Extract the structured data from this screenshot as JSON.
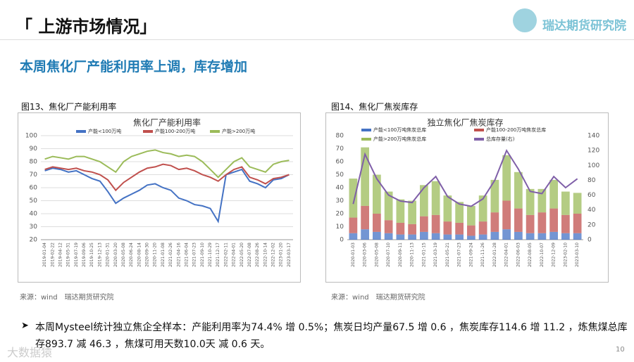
{
  "header": {
    "title": "「 上游市场情况」",
    "logo": "瑞达期货研究院",
    "subtitle": "本周焦化厂产能利用率上调，库存增加"
  },
  "figures": [
    {
      "label": "图13、焦化厂产能利用率",
      "source": "来源：wind　瑞达期货研究院"
    },
    {
      "label": "图14、焦化厂焦炭库存",
      "source": "来源：wind　瑞达期货研究院"
    }
  ],
  "bullet": "本周Mysteel统计独立焦企全样本：产能利用率为74.4% 增 0.5%；焦炭日均产量67.5 增 0.6 ，焦炭库存114.6 增 11.2 ，炼焦煤总库存893.7 减 46.3 ，焦煤可用天数10.0天 减 0.6 天。",
  "watermark": "大数据猿",
  "page_number": "10",
  "chart_data": [
    {
      "type": "line",
      "title": "焦化厂产能利用率",
      "categories": [
        "2019-01-04",
        "2019-02-22",
        "2019-04-12",
        "2019-05-31",
        "2019-07-19",
        "2019-09-06",
        "2019-10-25",
        "2019-12-13",
        "2020-01-31",
        "2020-03-20",
        "2020-05-08",
        "2020-06-24",
        "2020-08-14",
        "2020-09-30",
        "2020-11-20",
        "2021-01-08",
        "2021-02-26",
        "2021-04-16",
        "2021-06-04",
        "2021-07-23",
        "2021-09-10",
        "2021-10-29",
        "2021-12-17",
        "2022-02-11",
        "2022-04-01",
        "2022-05-20",
        "2022-07-08",
        "2022-08-26",
        "2022-10-14",
        "2022-12-02",
        "2023-01-20",
        "2023-03-17"
      ],
      "series": [
        {
          "name": "产能<100万吨",
          "color": "#4472c4",
          "values": [
            73,
            75,
            74,
            72,
            73,
            70,
            67,
            65,
            57,
            48,
            52,
            55,
            58,
            62,
            63,
            60,
            58,
            52,
            50,
            47,
            46,
            44,
            34,
            70,
            72,
            74,
            65,
            63,
            60,
            66,
            67,
            70
          ]
        },
        {
          "name": "产能100-200万吨",
          "color": "#c0504d",
          "values": [
            74,
            76,
            75,
            74,
            75,
            73,
            72,
            70,
            66,
            58,
            64,
            68,
            72,
            75,
            76,
            78,
            77,
            74,
            75,
            73,
            70,
            68,
            65,
            70,
            74,
            76,
            68,
            66,
            63,
            67,
            68,
            70
          ]
        },
        {
          "name": "产能>200万吨",
          "color": "#9bbb59",
          "values": [
            82,
            84,
            83,
            82,
            84,
            84,
            82,
            80,
            76,
            72,
            80,
            84,
            86,
            88,
            89,
            87,
            86,
            84,
            85,
            84,
            80,
            74,
            68,
            74,
            80,
            83,
            76,
            74,
            72,
            78,
            80,
            81
          ]
        }
      ],
      "ylim": [
        20,
        100
      ],
      "yticks": [
        20,
        30,
        40,
        50,
        60,
        70,
        80,
        90,
        100
      ],
      "grid": true
    },
    {
      "type": "bar",
      "stacked": true,
      "title": "独立焦化厂焦炭库存",
      "categories": [
        "2020-01-03",
        "2020-03-06",
        "2020-05-08",
        "2020-07-10",
        "2020-09-11",
        "2020-11-13",
        "2021-01-15",
        "2021-03-19",
        "2021-05-21",
        "2021-07-23",
        "2021-09-24",
        "2021-11-26",
        "2022-01-28",
        "2022-04-01",
        "2022-06-03",
        "2022-08-05",
        "2022-10-07",
        "2022-12-09",
        "2023-02-10",
        "2023-03-10"
      ],
      "series": [
        {
          "name": "产能<100万吨焦炭总库",
          "color": "#4472c4",
          "values": [
            5,
            8,
            6,
            5,
            4,
            4,
            6,
            5,
            4,
            4,
            3,
            4,
            6,
            8,
            6,
            5,
            5,
            6,
            5,
            5
          ]
        },
        {
          "name": "产能100-200万吨焦炭总库",
          "color": "#c0504d",
          "values": [
            12,
            18,
            14,
            10,
            9,
            8,
            12,
            14,
            10,
            9,
            8,
            10,
            15,
            22,
            18,
            14,
            16,
            18,
            14,
            15
          ]
        },
        {
          "name": "产能>200万吨焦炭总库",
          "color": "#9bbb59",
          "values": [
            30,
            45,
            30,
            22,
            18,
            18,
            24,
            26,
            20,
            16,
            15,
            20,
            25,
            35,
            28,
            20,
            18,
            22,
            18,
            16
          ]
        },
        {
          "name": "总库存量(右)",
          "color": "#7f5fa8",
          "type": "line",
          "axis": "y2",
          "values": [
            48,
            115,
            82,
            60,
            52,
            50,
            70,
            85,
            58,
            48,
            45,
            55,
            80,
            120,
            95,
            65,
            62,
            85,
            70,
            82
          ]
        }
      ],
      "ylim": [
        0,
        80
      ],
      "yticks": [
        0,
        10,
        20,
        30,
        40,
        50,
        60,
        70,
        80
      ],
      "y2lim": [
        0,
        140
      ],
      "y2ticks": [
        0,
        20,
        40,
        60,
        80,
        100,
        120,
        140
      ],
      "grid": false
    }
  ]
}
